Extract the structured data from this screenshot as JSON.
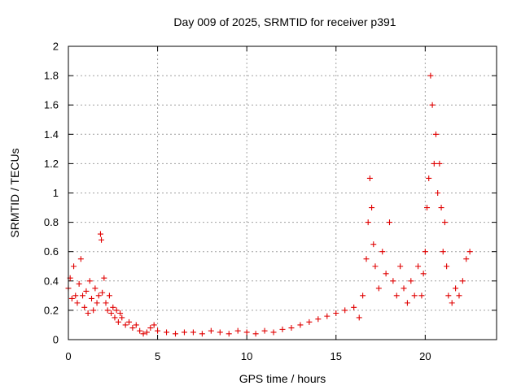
{
  "chart_data": {
    "type": "scatter",
    "title": "Day 009 of 2025, SRMTID for receiver p391",
    "xlabel": "GPS time / hours",
    "ylabel": "SRMTID / TECUs",
    "xlim": [
      0,
      24
    ],
    "ylim": [
      0,
      2
    ],
    "xticks": [
      0,
      5,
      10,
      15,
      20
    ],
    "yticks": [
      0,
      0.2,
      0.4,
      0.6,
      0.8,
      1,
      1.2,
      1.4,
      1.6,
      1.8,
      2
    ],
    "xtick_labels": [
      "0",
      "5",
      "10",
      "15",
      "20"
    ],
    "ytick_labels": [
      "0",
      "0.2",
      "0.4",
      "0.6",
      "0.8",
      "1",
      "1.2",
      "1.4",
      "1.6",
      "1.8",
      "2"
    ],
    "grid": true,
    "marker": "+",
    "color": "#e00000",
    "series": [
      {
        "name": "SRMTID",
        "x": [
          0.0,
          0.1,
          0.2,
          0.3,
          0.4,
          0.5,
          0.6,
          0.7,
          0.8,
          0.9,
          1.0,
          1.1,
          1.2,
          1.3,
          1.4,
          1.5,
          1.6,
          1.7,
          1.8,
          1.85,
          1.9,
          2.0,
          2.1,
          2.2,
          2.3,
          2.4,
          2.5,
          2.6,
          2.7,
          2.8,
          2.9,
          3.0,
          3.2,
          3.4,
          3.6,
          3.8,
          4.0,
          4.2,
          4.4,
          4.6,
          4.8,
          5.0,
          5.5,
          6.0,
          6.5,
          7.0,
          7.5,
          8.0,
          8.5,
          9.0,
          9.5,
          10.0,
          10.5,
          11.0,
          11.5,
          12.0,
          12.5,
          13.0,
          13.5,
          14.0,
          14.5,
          15.0,
          15.5,
          16.0,
          16.3,
          16.5,
          16.7,
          16.8,
          16.9,
          17.0,
          17.1,
          17.2,
          17.4,
          17.6,
          17.8,
          18.0,
          18.2,
          18.4,
          18.6,
          18.8,
          19.0,
          19.2,
          19.4,
          19.6,
          19.8,
          19.9,
          20.0,
          20.1,
          20.2,
          20.3,
          20.4,
          20.5,
          20.6,
          20.7,
          20.8,
          20.9,
          21.0,
          21.1,
          21.2,
          21.3,
          21.5,
          21.7,
          21.9,
          22.1,
          22.3,
          22.5
        ],
        "y": [
          0.35,
          0.42,
          0.28,
          0.5,
          0.3,
          0.25,
          0.38,
          0.55,
          0.3,
          0.22,
          0.33,
          0.18,
          0.4,
          0.28,
          0.2,
          0.35,
          0.25,
          0.3,
          0.72,
          0.68,
          0.32,
          0.42,
          0.25,
          0.2,
          0.3,
          0.18,
          0.22,
          0.15,
          0.2,
          0.12,
          0.18,
          0.15,
          0.1,
          0.12,
          0.08,
          0.1,
          0.06,
          0.04,
          0.05,
          0.08,
          0.1,
          0.06,
          0.05,
          0.04,
          0.05,
          0.05,
          0.04,
          0.06,
          0.05,
          0.04,
          0.06,
          0.05,
          0.04,
          0.06,
          0.05,
          0.07,
          0.08,
          0.1,
          0.12,
          0.14,
          0.16,
          0.18,
          0.2,
          0.22,
          0.15,
          0.3,
          0.55,
          0.8,
          1.1,
          0.9,
          0.65,
          0.5,
          0.35,
          0.6,
          0.45,
          0.8,
          0.4,
          0.3,
          0.5,
          0.35,
          0.25,
          0.4,
          0.3,
          0.5,
          0.3,
          0.45,
          0.6,
          0.9,
          1.1,
          1.8,
          1.6,
          1.2,
          1.4,
          1.0,
          1.2,
          0.9,
          0.6,
          0.8,
          0.5,
          0.3,
          0.25,
          0.35,
          0.3,
          0.4,
          0.55,
          0.6
        ]
      }
    ]
  }
}
